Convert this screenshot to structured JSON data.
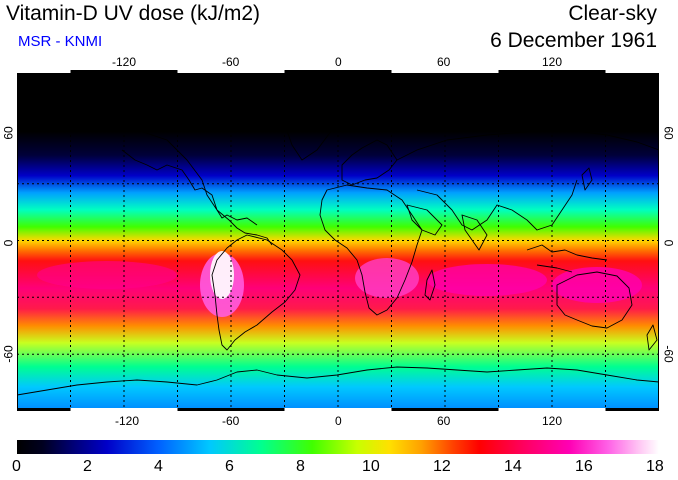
{
  "header": {
    "title": "Vitamin-D UV dose (kJ/m2)",
    "subtitle": "MSR - KNMI",
    "mode": "Clear-sky",
    "date": "6 December 1961"
  },
  "map": {
    "lon_ticks": [
      -120,
      -60,
      0,
      60,
      120
    ],
    "lat_ticks": [
      60,
      0,
      -60
    ],
    "lon_range": [
      -180,
      180
    ],
    "lat_range": [
      -90,
      90
    ],
    "grid": "dotted 30 degree"
  },
  "legend": {
    "tick_labels": [
      "0",
      "2",
      "4",
      "6",
      "8",
      "10",
      "12",
      "14",
      "16",
      "18"
    ],
    "range": [
      0,
      18
    ]
  },
  "colors": {
    "subtitle": "#0000ff",
    "low": "#000000",
    "mid": "#00ff00",
    "high": "#ff0000",
    "max": "#ffffff"
  }
}
